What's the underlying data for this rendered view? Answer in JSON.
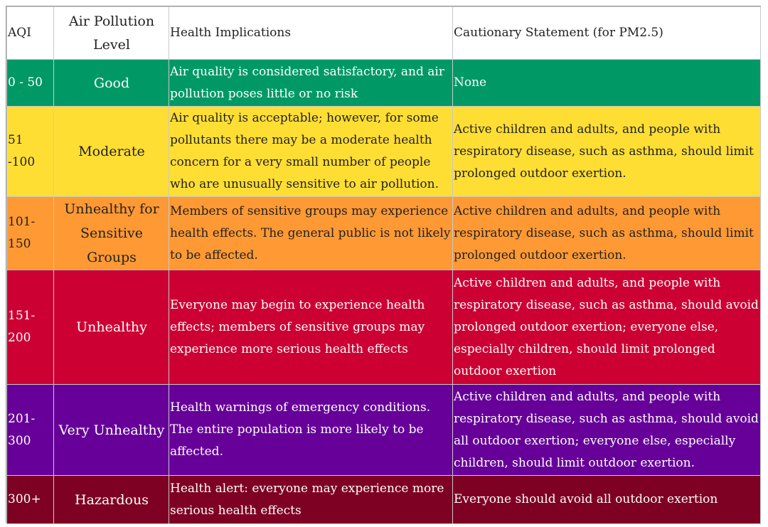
{
  "header": {
    "aqi": "AQI",
    "level": "Air Pollution Level",
    "health": "Health Implications",
    "caution": "Cautionary Statement (for PM2.5)"
  },
  "rows": [
    {
      "aqi": "0 - 50",
      "level": "Good",
      "health": "Air quality is considered satisfactory, and air pollution poses little or no risk",
      "caution": "None",
      "color": "#009966"
    },
    {
      "aqi": "51 -100",
      "level": "Moderate",
      "health": "Air quality is acceptable; however, for some pollutants there may be a moderate health concern for a very small number of people who are unusually sensitive to air pollution.",
      "caution": "Active children and adults, and people with respiratory disease, such as asthma, should limit prolonged outdoor exertion.",
      "color": "#ffde33"
    },
    {
      "aqi": "101-150",
      "level": "Unhealthy for Sensitive Groups",
      "health": "Members of sensitive groups may experience health effects. The general public is not likely to be affected.",
      "caution": "Active children and adults, and people with respiratory disease, such as asthma, should limit prolonged outdoor exertion.",
      "color": "#ff9933"
    },
    {
      "aqi": "151-200",
      "level": "Unhealthy",
      "health": "Everyone may begin to experience health effects; members of sensitive groups may experience more serious health effects",
      "caution": "Active children and adults, and people with respiratory disease, such as asthma, should avoid prolonged outdoor exertion; everyone else, especially children, should limit prolonged outdoor exertion",
      "color": "#cc0033"
    },
    {
      "aqi": "201-300",
      "level": "Very Unhealthy",
      "health": "Health warnings of emergency conditions. The entire population is more likely to be affected.",
      "caution": "Active children and adults, and people with respiratory disease, such as asthma, should avoid all outdoor exertion; everyone else, especially children, should limit outdoor exertion.",
      "color": "#660099"
    },
    {
      "aqi": "300+",
      "level": "Hazardous",
      "health": "Health alert: everyone may experience more serious health effects",
      "caution": "Everyone should avoid all outdoor exertion",
      "color": "#7e0023"
    }
  ]
}
